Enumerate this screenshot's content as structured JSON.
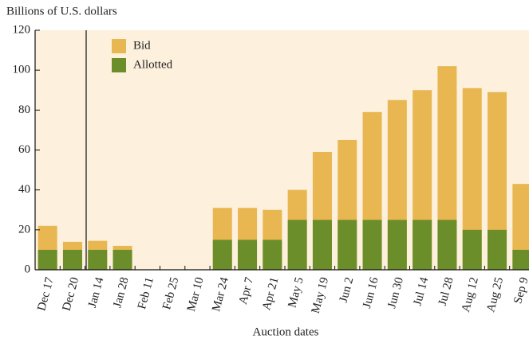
{
  "chart_data": {
    "type": "bar",
    "y_label": "Billions of U.S. dollars",
    "x_label": "Auction dates",
    "categories": [
      "Dec 17",
      "Dec 20",
      "Jan 14",
      "Jan 28",
      "Feb 11",
      "Feb 25",
      "Mar 10",
      "Mar 24",
      "Apr 7",
      "Apr 21",
      "May 5",
      "May 19",
      "Jun 2",
      "Jun 16",
      "Jun 30",
      "Jul 14",
      "Jul 28",
      "Aug 12",
      "Aug 25",
      "Sep 9"
    ],
    "series": [
      {
        "name": "Bid",
        "color": "#e8b751",
        "values": [
          22,
          14,
          14.5,
          12,
          null,
          null,
          null,
          31,
          31,
          30,
          40,
          59,
          65,
          79,
          85,
          90,
          102,
          91,
          89,
          43
        ]
      },
      {
        "name": "Allotted",
        "color": "#6b8e2a",
        "values": [
          10,
          10,
          10,
          10,
          null,
          null,
          null,
          15,
          15,
          15,
          25,
          25,
          25,
          25,
          25,
          25,
          25,
          20,
          20,
          10
        ]
      }
    ],
    "ylim": [
      0,
      120
    ],
    "yticks": [
      0,
      20,
      40,
      60,
      80,
      100,
      120
    ]
  }
}
